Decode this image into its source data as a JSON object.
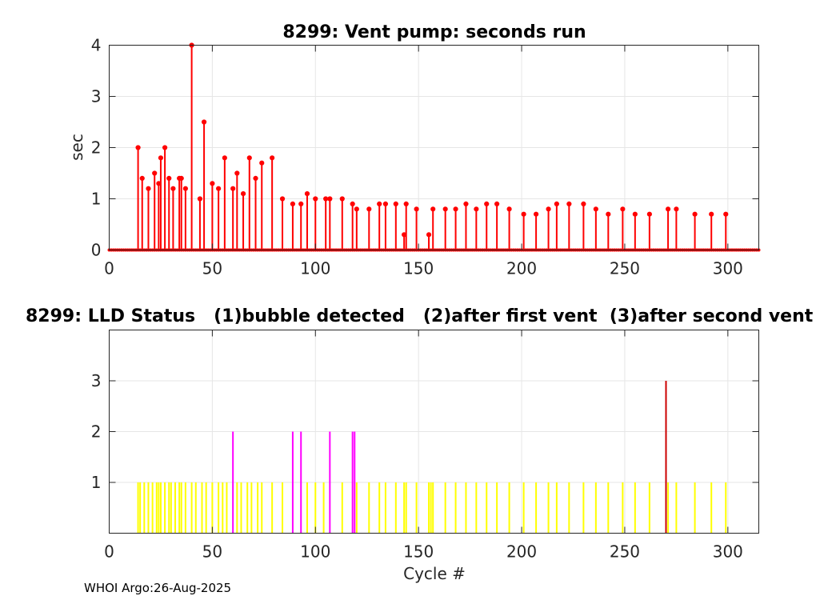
{
  "footer": "WHOI Argo:26-Aug-2025",
  "chart_data": [
    {
      "type": "stem",
      "title": "8299: Vent pump: seconds run",
      "xlabel": "",
      "ylabel": "sec",
      "xlim": [
        0,
        315
      ],
      "ylim": [
        0,
        4
      ],
      "xticks": [
        0,
        50,
        100,
        150,
        200,
        250,
        300
      ],
      "yticks": [
        0,
        1,
        2,
        3,
        4
      ],
      "grid": true,
      "color": "#ff0000",
      "zero_range": [
        0,
        315
      ],
      "points": [
        [
          14,
          2.0
        ],
        [
          16,
          1.4
        ],
        [
          19,
          1.2
        ],
        [
          22,
          1.5
        ],
        [
          24,
          1.3
        ],
        [
          25,
          1.8
        ],
        [
          27,
          2.0
        ],
        [
          29,
          1.4
        ],
        [
          31,
          1.2
        ],
        [
          34,
          1.4
        ],
        [
          35,
          1.4
        ],
        [
          37,
          1.2
        ],
        [
          40,
          4.0
        ],
        [
          44,
          1.0
        ],
        [
          46,
          2.5
        ],
        [
          50,
          1.3
        ],
        [
          53,
          1.2
        ],
        [
          56,
          1.8
        ],
        [
          60,
          1.2
        ],
        [
          62,
          1.5
        ],
        [
          65,
          1.1
        ],
        [
          68,
          1.8
        ],
        [
          71,
          1.4
        ],
        [
          74,
          1.7
        ],
        [
          79,
          1.8
        ],
        [
          84,
          1.0
        ],
        [
          89,
          0.9
        ],
        [
          93,
          0.9
        ],
        [
          96,
          1.1
        ],
        [
          100,
          1.0
        ],
        [
          105,
          1.0
        ],
        [
          107,
          1.0
        ],
        [
          113,
          1.0
        ],
        [
          118,
          0.9
        ],
        [
          120,
          0.8
        ],
        [
          126,
          0.8
        ],
        [
          131,
          0.9
        ],
        [
          134,
          0.9
        ],
        [
          139,
          0.9
        ],
        [
          143,
          0.3
        ],
        [
          144,
          0.9
        ],
        [
          149,
          0.8
        ],
        [
          155,
          0.3
        ],
        [
          157,
          0.8
        ],
        [
          163,
          0.8
        ],
        [
          168,
          0.8
        ],
        [
          173,
          0.9
        ],
        [
          178,
          0.8
        ],
        [
          183,
          0.9
        ],
        [
          188,
          0.9
        ],
        [
          194,
          0.8
        ],
        [
          201,
          0.7
        ],
        [
          207,
          0.7
        ],
        [
          213,
          0.8
        ],
        [
          217,
          0.9
        ],
        [
          223,
          0.9
        ],
        [
          230,
          0.9
        ],
        [
          236,
          0.8
        ],
        [
          242,
          0.7
        ],
        [
          249,
          0.8
        ],
        [
          255,
          0.7
        ],
        [
          262,
          0.7
        ],
        [
          271,
          0.8
        ],
        [
          275,
          0.8
        ],
        [
          284,
          0.7
        ],
        [
          292,
          0.7
        ],
        [
          299,
          0.7
        ]
      ]
    },
    {
      "type": "stem",
      "title": "8299: LLD Status   (1)bubble detected   (2)after first vent  (3)after second vent",
      "xlabel": "Cycle #",
      "ylabel": "",
      "xlim": [
        0,
        315
      ],
      "ylim": [
        0,
        4
      ],
      "xticks": [
        0,
        50,
        100,
        150,
        200,
        250,
        300
      ],
      "yticks": [
        1,
        2,
        3
      ],
      "grid": true,
      "series_colors": {
        "1": "#ffff00",
        "2": "#ff00ff",
        "3": "#cc0000"
      },
      "points": [
        [
          14,
          1
        ],
        [
          15,
          1
        ],
        [
          17,
          1
        ],
        [
          19,
          1
        ],
        [
          21,
          1
        ],
        [
          23,
          1
        ],
        [
          24,
          1
        ],
        [
          25,
          1
        ],
        [
          27,
          1
        ],
        [
          29,
          1
        ],
        [
          30,
          1
        ],
        [
          32,
          1
        ],
        [
          34,
          1
        ],
        [
          35,
          1
        ],
        [
          37,
          1
        ],
        [
          40,
          1
        ],
        [
          42,
          1
        ],
        [
          45,
          1
        ],
        [
          47,
          1
        ],
        [
          50,
          1
        ],
        [
          53,
          1
        ],
        [
          55,
          1
        ],
        [
          57,
          1
        ],
        [
          60,
          2
        ],
        [
          62,
          1
        ],
        [
          64,
          1
        ],
        [
          67,
          1
        ],
        [
          69,
          1
        ],
        [
          72,
          1
        ],
        [
          74,
          1
        ],
        [
          79,
          1
        ],
        [
          84,
          1
        ],
        [
          89,
          2
        ],
        [
          93,
          2
        ],
        [
          96,
          1
        ],
        [
          100,
          1
        ],
        [
          104,
          1
        ],
        [
          107,
          2
        ],
        [
          113,
          1
        ],
        [
          118,
          2
        ],
        [
          119,
          2
        ],
        [
          120,
          1
        ],
        [
          126,
          1
        ],
        [
          131,
          1
        ],
        [
          134,
          1
        ],
        [
          139,
          1
        ],
        [
          143,
          1
        ],
        [
          144,
          1
        ],
        [
          149,
          1
        ],
        [
          155,
          1
        ],
        [
          156,
          1
        ],
        [
          157,
          1
        ],
        [
          163,
          1
        ],
        [
          168,
          1
        ],
        [
          173,
          1
        ],
        [
          178,
          1
        ],
        [
          183,
          1
        ],
        [
          188,
          1
        ],
        [
          194,
          1
        ],
        [
          201,
          1
        ],
        [
          207,
          1
        ],
        [
          213,
          1
        ],
        [
          217,
          1
        ],
        [
          223,
          1
        ],
        [
          230,
          1
        ],
        [
          236,
          1
        ],
        [
          242,
          1
        ],
        [
          249,
          1
        ],
        [
          255,
          1
        ],
        [
          262,
          1
        ],
        [
          270,
          3
        ],
        [
          271,
          1
        ],
        [
          275,
          1
        ],
        [
          284,
          1
        ],
        [
          292,
          1
        ],
        [
          299,
          1
        ]
      ]
    }
  ]
}
